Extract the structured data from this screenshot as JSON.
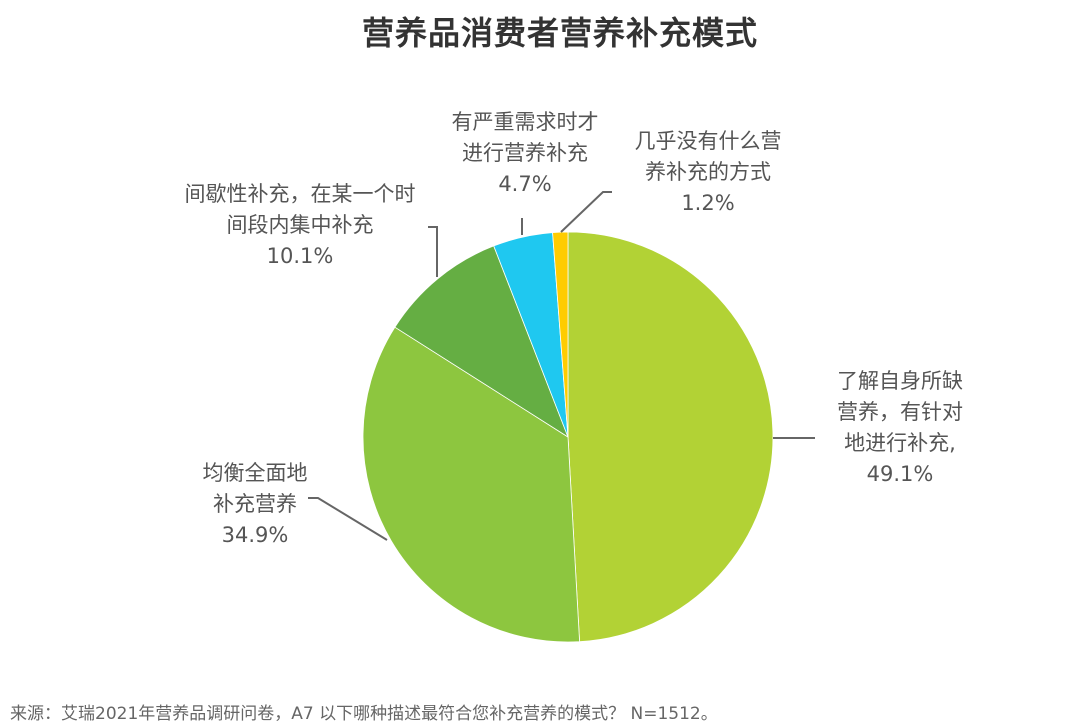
{
  "chart_data": {
    "type": "pie",
    "title": "营养品消费者营养补充模式",
    "categories": [
      "了解自身所缺营养，有针对地进行补充",
      "均衡全面地补充营养",
      "间歇性补充，在某一个时间段内集中补充",
      "有严重需求时才进行营养补充",
      "几乎没有什么营养补充的方式"
    ],
    "values": [
      49.1,
      34.9,
      10.1,
      4.7,
      1.2
    ],
    "unit": "%",
    "colors": [
      "#b2d235",
      "#8dc63f",
      "#65ae43",
      "#1fc8f0",
      "#ffcc00"
    ],
    "start_angle": "12 o'clock",
    "direction": "clockwise",
    "legend": "none (leader-line labels)",
    "source": "来源：艾瑞2021年营养品调研问卷，A7 以下哪种描述最符合您补充营养的模式？ N=1512。"
  },
  "title": "营养品消费者营养补充模式",
  "labels": [
    {
      "lines": [
        "了解自身所缺",
        "营养，有针对",
        "地进行补充,"
      ],
      "pct": "49.1%"
    },
    {
      "lines": [
        "均衡全面地",
        "补充营养"
      ],
      "pct": "34.9%"
    },
    {
      "lines": [
        "间歇性补充，在某一个时",
        "间段内集中补充"
      ],
      "pct": "10.1%"
    },
    {
      "lines": [
        "有严重需求时才",
        "进行营养补充"
      ],
      "pct": "4.7%"
    },
    {
      "lines": [
        "几乎没有什么营",
        "养补充的方式"
      ],
      "pct": "1.2%"
    }
  ],
  "source": "来源：艾瑞2021年营养品调研问卷，A7 以下哪种描述最符合您补充营养的模式？ N=1512。"
}
